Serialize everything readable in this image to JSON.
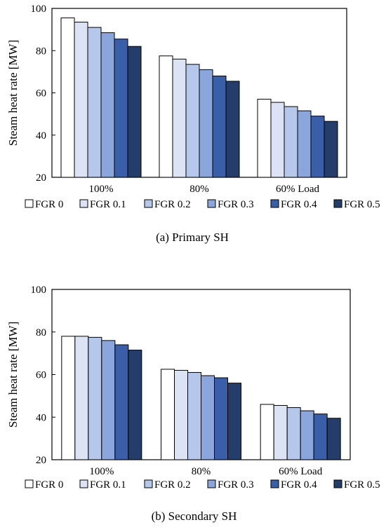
{
  "legend": [
    "FGR  0",
    "FGR 0.1",
    "FGR 0.2",
    "FGR 0.3",
    "FGR 0.4",
    "FGR 0.5"
  ],
  "series_colors": [
    "#ffffff",
    "#dbe3f4",
    "#b5c7ea",
    "#8aa6dd",
    "#3a5fa8",
    "#253d6b"
  ],
  "chart_data": [
    {
      "type": "bar",
      "caption": "(a) Primary SH",
      "ylabel": "Steam heat rate [MW]",
      "ylim": [
        20,
        100
      ],
      "yticks": [
        "20",
        "40",
        "60",
        "80",
        "100"
      ],
      "categories": [
        "100%",
        "80%",
        "60% Load"
      ],
      "series": [
        {
          "name": "FGR  0",
          "values": [
            95.5,
            77.5,
            57.0
          ]
        },
        {
          "name": "FGR 0.1",
          "values": [
            93.5,
            76.0,
            55.5
          ]
        },
        {
          "name": "FGR 0.2",
          "values": [
            91.0,
            73.5,
            53.5
          ]
        },
        {
          "name": "FGR 0.3",
          "values": [
            88.5,
            71.0,
            51.5
          ]
        },
        {
          "name": "FGR 0.4",
          "values": [
            85.5,
            68.0,
            49.0
          ]
        },
        {
          "name": "FGR 0.5",
          "values": [
            82.0,
            65.5,
            46.5
          ]
        }
      ],
      "grid": false,
      "legend_position": "bottom"
    },
    {
      "type": "bar",
      "caption": "(b) Secondary SH",
      "ylabel": "Steam heat rate [MW]",
      "ylim": [
        20,
        100
      ],
      "yticks": [
        "20",
        "40",
        "60",
        "80",
        "100"
      ],
      "categories": [
        "100%",
        "80%",
        "60% Load"
      ],
      "series": [
        {
          "name": "FGR  0",
          "values": [
            78.0,
            62.5,
            46.0
          ]
        },
        {
          "name": "FGR 0.1",
          "values": [
            78.0,
            62.0,
            45.5
          ]
        },
        {
          "name": "FGR 0.2",
          "values": [
            77.5,
            61.0,
            44.5
          ]
        },
        {
          "name": "FGR 0.3",
          "values": [
            76.0,
            59.5,
            43.0
          ]
        },
        {
          "name": "FGR 0.4",
          "values": [
            74.0,
            58.5,
            41.5
          ]
        },
        {
          "name": "FGR 0.5",
          "values": [
            71.5,
            56.0,
            39.5
          ]
        }
      ],
      "grid": false,
      "legend_position": "bottom"
    }
  ]
}
